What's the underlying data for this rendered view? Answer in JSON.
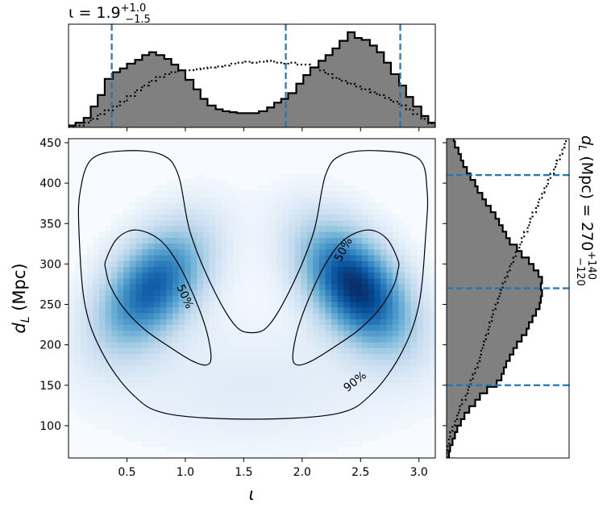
{
  "chart_data": [
    {
      "type": "histogram",
      "panel": "marginal-top",
      "title": {
        "prefix": "ι = 1.9",
        "sup": "+1.0",
        "sub": "−1.5"
      },
      "xlim": [
        0.0,
        3.14
      ],
      "vlines": [
        0.37,
        1.86,
        2.84
      ],
      "bins": [
        0.0,
        0.06,
        0.13,
        0.19,
        0.25,
        0.31,
        0.38,
        0.44,
        0.5,
        0.57,
        0.63,
        0.69,
        0.75,
        0.82,
        0.88,
        0.94,
        1.0,
        1.07,
        1.13,
        1.19,
        1.26,
        1.32,
        1.38,
        1.44,
        1.51,
        1.57,
        1.63,
        1.7,
        1.76,
        1.82,
        1.88,
        1.95,
        2.01,
        2.07,
        2.14,
        2.2,
        2.26,
        2.32,
        2.39,
        2.45,
        2.51,
        2.58,
        2.64,
        2.7,
        2.76,
        2.83,
        2.89,
        2.95,
        3.02,
        3.08,
        3.14
      ],
      "series": [
        {
          "style": "filled",
          "values": [
            0.02,
            0.05,
            0.1,
            0.22,
            0.34,
            0.51,
            0.58,
            0.62,
            0.67,
            0.71,
            0.76,
            0.79,
            0.76,
            0.72,
            0.66,
            0.6,
            0.5,
            0.4,
            0.3,
            0.23,
            0.19,
            0.17,
            0.16,
            0.15,
            0.15,
            0.15,
            0.17,
            0.21,
            0.26,
            0.3,
            0.36,
            0.46,
            0.55,
            0.63,
            0.7,
            0.76,
            0.83,
            0.91,
            1.0,
            0.94,
            0.92,
            0.86,
            0.79,
            0.68,
            0.56,
            0.44,
            0.32,
            0.22,
            0.12,
            0.05
          ]
        },
        {
          "style": "dotted",
          "values": [
            0.0,
            0.02,
            0.05,
            0.09,
            0.14,
            0.18,
            0.22,
            0.27,
            0.33,
            0.39,
            0.44,
            0.49,
            0.53,
            0.56,
            0.58,
            0.6,
            0.6,
            0.61,
            0.62,
            0.63,
            0.64,
            0.65,
            0.67,
            0.68,
            0.69,
            0.68,
            0.69,
            0.7,
            0.68,
            0.67,
            0.68,
            0.66,
            0.66,
            0.63,
            0.6,
            0.56,
            0.52,
            0.49,
            0.46,
            0.43,
            0.4,
            0.37,
            0.34,
            0.31,
            0.27,
            0.23,
            0.19,
            0.14,
            0.09,
            0.04
          ]
        }
      ]
    },
    {
      "type": "heatmap",
      "panel": "joint",
      "xlabel": "ι",
      "ylabel": {
        "base": "d",
        "sub": "L",
        "suffix": " (Mpc)"
      },
      "xlim": [
        0.0,
        3.14
      ],
      "ylim": [
        60,
        455
      ],
      "xticks": [
        0.5,
        1.0,
        1.5,
        2.0,
        2.5,
        3.0
      ],
      "yticks": [
        100,
        150,
        200,
        250,
        300,
        350,
        400,
        450
      ],
      "colormap": "Blues",
      "peaks": [
        {
          "iota": 0.72,
          "dl": 272
        },
        {
          "iota": 2.46,
          "dl": 272
        }
      ],
      "contours": [
        {
          "level": "50%",
          "regions": [
            [
              [
                0.32,
                305
              ],
              [
                0.42,
                332
              ],
              [
                0.58,
                342
              ],
              [
                0.78,
                330
              ],
              [
                0.94,
                300
              ],
              [
                1.08,
                258
              ],
              [
                1.18,
                218
              ],
              [
                1.22,
                185
              ],
              [
                1.18,
                175
              ],
              [
                1.06,
                180
              ],
              [
                0.88,
                196
              ],
              [
                0.66,
                218
              ],
              [
                0.48,
                244
              ],
              [
                0.36,
                272
              ],
              [
                0.32,
                292
              ]
            ],
            [
              [
                2.82,
                305
              ],
              [
                2.72,
                332
              ],
              [
                2.56,
                342
              ],
              [
                2.36,
                330
              ],
              [
                2.2,
                300
              ],
              [
                2.06,
                258
              ],
              [
                1.96,
                218
              ],
              [
                1.92,
                185
              ],
              [
                1.96,
                175
              ],
              [
                2.08,
                180
              ],
              [
                2.26,
                196
              ],
              [
                2.48,
                218
              ],
              [
                2.66,
                244
              ],
              [
                2.78,
                272
              ],
              [
                2.82,
                292
              ]
            ]
          ],
          "labels": [
            {
              "text": "50%",
              "iota": 1.0,
              "dl": 260,
              "angle": 66
            },
            {
              "text": "50%",
              "iota": 2.35,
              "dl": 318,
              "angle": -62
            }
          ]
        },
        {
          "level": "90%",
          "regions": [
            [
              [
                0.09,
                340
              ],
              [
                0.1,
                390
              ],
              [
                0.2,
                430
              ],
              [
                0.48,
                440
              ],
              [
                0.8,
                435
              ],
              [
                0.94,
                410
              ],
              [
                1.04,
                340
              ],
              [
                1.22,
                275
              ],
              [
                1.42,
                225
              ],
              [
                1.57,
                215
              ],
              [
                1.72,
                225
              ],
              [
                1.92,
                275
              ],
              [
                2.1,
                340
              ],
              [
                2.2,
                410
              ],
              [
                2.34,
                435
              ],
              [
                2.66,
                440
              ],
              [
                3.0,
                430
              ],
              [
                3.07,
                390
              ],
              [
                3.06,
                340
              ],
              [
                3.0,
                250
              ],
              [
                2.85,
                190
              ],
              [
                2.6,
                140
              ],
              [
                2.3,
                115
              ],
              [
                1.57,
                108
              ],
              [
                0.84,
                115
              ],
              [
                0.54,
                140
              ],
              [
                0.29,
                190
              ],
              [
                0.14,
                250
              ]
            ]
          ],
          "labels": [
            {
              "text": "90%",
              "iota": 2.45,
              "dl": 155,
              "angle": -38
            }
          ]
        }
      ]
    },
    {
      "type": "histogram",
      "panel": "marginal-right",
      "orientation": "horizontal",
      "title": {
        "prefix": "d",
        "sub": "L",
        "middle": " (Mpc) = 270",
        "sup2": "+140",
        "sub2": "−120"
      },
      "ylim": [
        60,
        455
      ],
      "hlines": [
        150,
        270,
        410
      ],
      "bins": [
        60,
        68,
        76,
        84,
        92,
        100,
        108,
        116,
        124,
        132,
        140,
        148,
        156,
        164,
        172,
        180,
        188,
        196,
        204,
        212,
        220,
        228,
        236,
        244,
        252,
        260,
        268,
        276,
        284,
        292,
        300,
        308,
        316,
        324,
        332,
        340,
        348,
        356,
        364,
        372,
        380,
        388,
        396,
        404,
        412,
        420,
        428,
        436,
        444,
        452,
        460
      ],
      "series": [
        {
          "style": "filled",
          "values": [
            0.02,
            0.03,
            0.05,
            0.07,
            0.09,
            0.12,
            0.15,
            0.19,
            0.24,
            0.28,
            0.34,
            0.42,
            0.46,
            0.48,
            0.5,
            0.53,
            0.56,
            0.59,
            0.63,
            0.67,
            0.69,
            0.72,
            0.75,
            0.78,
            0.79,
            0.8,
            0.79,
            0.8,
            0.77,
            0.73,
            0.69,
            0.63,
            0.59,
            0.53,
            0.5,
            0.47,
            0.44,
            0.41,
            0.37,
            0.33,
            0.3,
            0.26,
            0.24,
            0.2,
            0.17,
            0.14,
            0.12,
            0.1,
            0.07,
            0.06
          ]
        },
        {
          "style": "dotted",
          "values": [
            0.0,
            0.01,
            0.02,
            0.03,
            0.05,
            0.07,
            0.09,
            0.11,
            0.13,
            0.16,
            0.18,
            0.2,
            0.22,
            0.24,
            0.26,
            0.28,
            0.29,
            0.31,
            0.33,
            0.35,
            0.36,
            0.38,
            0.39,
            0.41,
            0.43,
            0.45,
            0.47,
            0.49,
            0.51,
            0.53,
            0.56,
            0.58,
            0.61,
            0.63,
            0.65,
            0.68,
            0.7,
            0.72,
            0.75,
            0.77,
            0.8,
            0.82,
            0.85,
            0.87,
            0.9,
            0.92,
            0.95,
            0.97,
            0.99,
            1.0
          ]
        }
      ]
    }
  ]
}
